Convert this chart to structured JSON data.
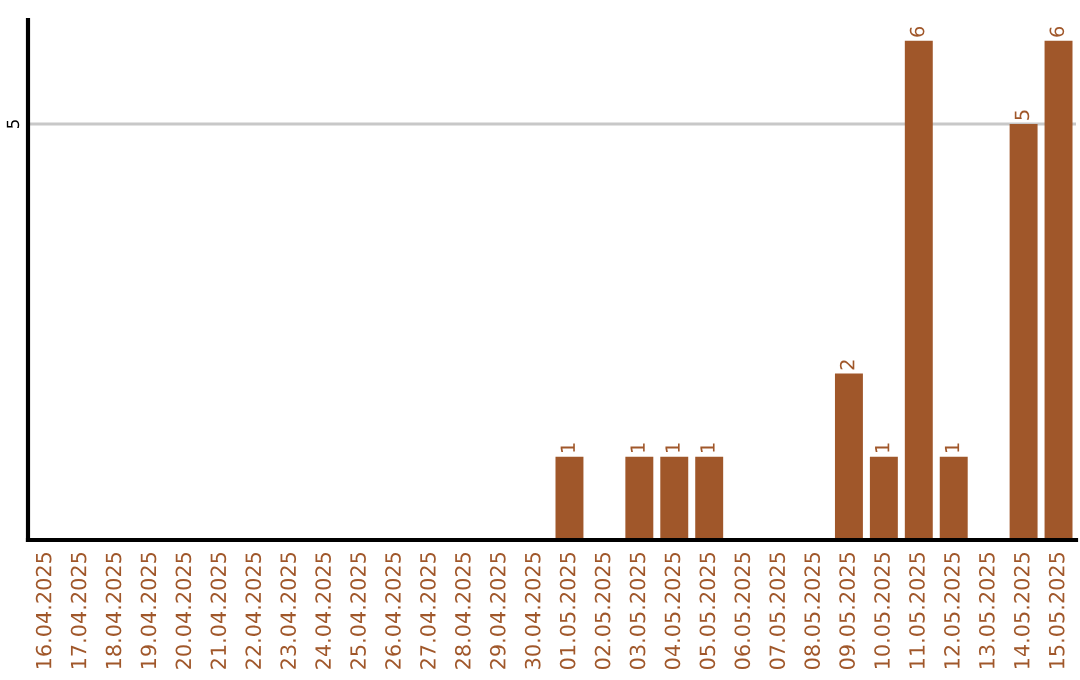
{
  "chart_data": {
    "type": "bar",
    "categories": [
      "16.04.2025",
      "17.04.2025",
      "18.04.2025",
      "19.04.2025",
      "20.04.2025",
      "21.04.2025",
      "22.04.2025",
      "23.04.2025",
      "24.04.2025",
      "25.04.2025",
      "26.04.2025",
      "27.04.2025",
      "28.04.2025",
      "29.04.2025",
      "30.04.2025",
      "01.05.2025",
      "02.05.2025",
      "03.05.2025",
      "04.05.2025",
      "05.05.2025",
      "06.05.2025",
      "07.05.2025",
      "08.05.2025",
      "09.05.2025",
      "10.05.2025",
      "11.05.2025",
      "12.05.2025",
      "13.05.2025",
      "14.05.2025",
      "15.05.2025"
    ],
    "values": [
      null,
      null,
      null,
      null,
      null,
      null,
      null,
      null,
      null,
      null,
      null,
      null,
      null,
      null,
      null,
      1,
      null,
      1,
      1,
      1,
      null,
      null,
      null,
      2,
      1,
      6,
      1,
      null,
      5,
      6
    ],
    "data_labels": true,
    "ylim": [
      0,
      6.25
    ],
    "color": "#a0572a",
    "ref_lines": [
      {
        "axis": "y",
        "value": 5,
        "label": "5",
        "color": "#c8c8c8"
      }
    ],
    "legend": false
  }
}
